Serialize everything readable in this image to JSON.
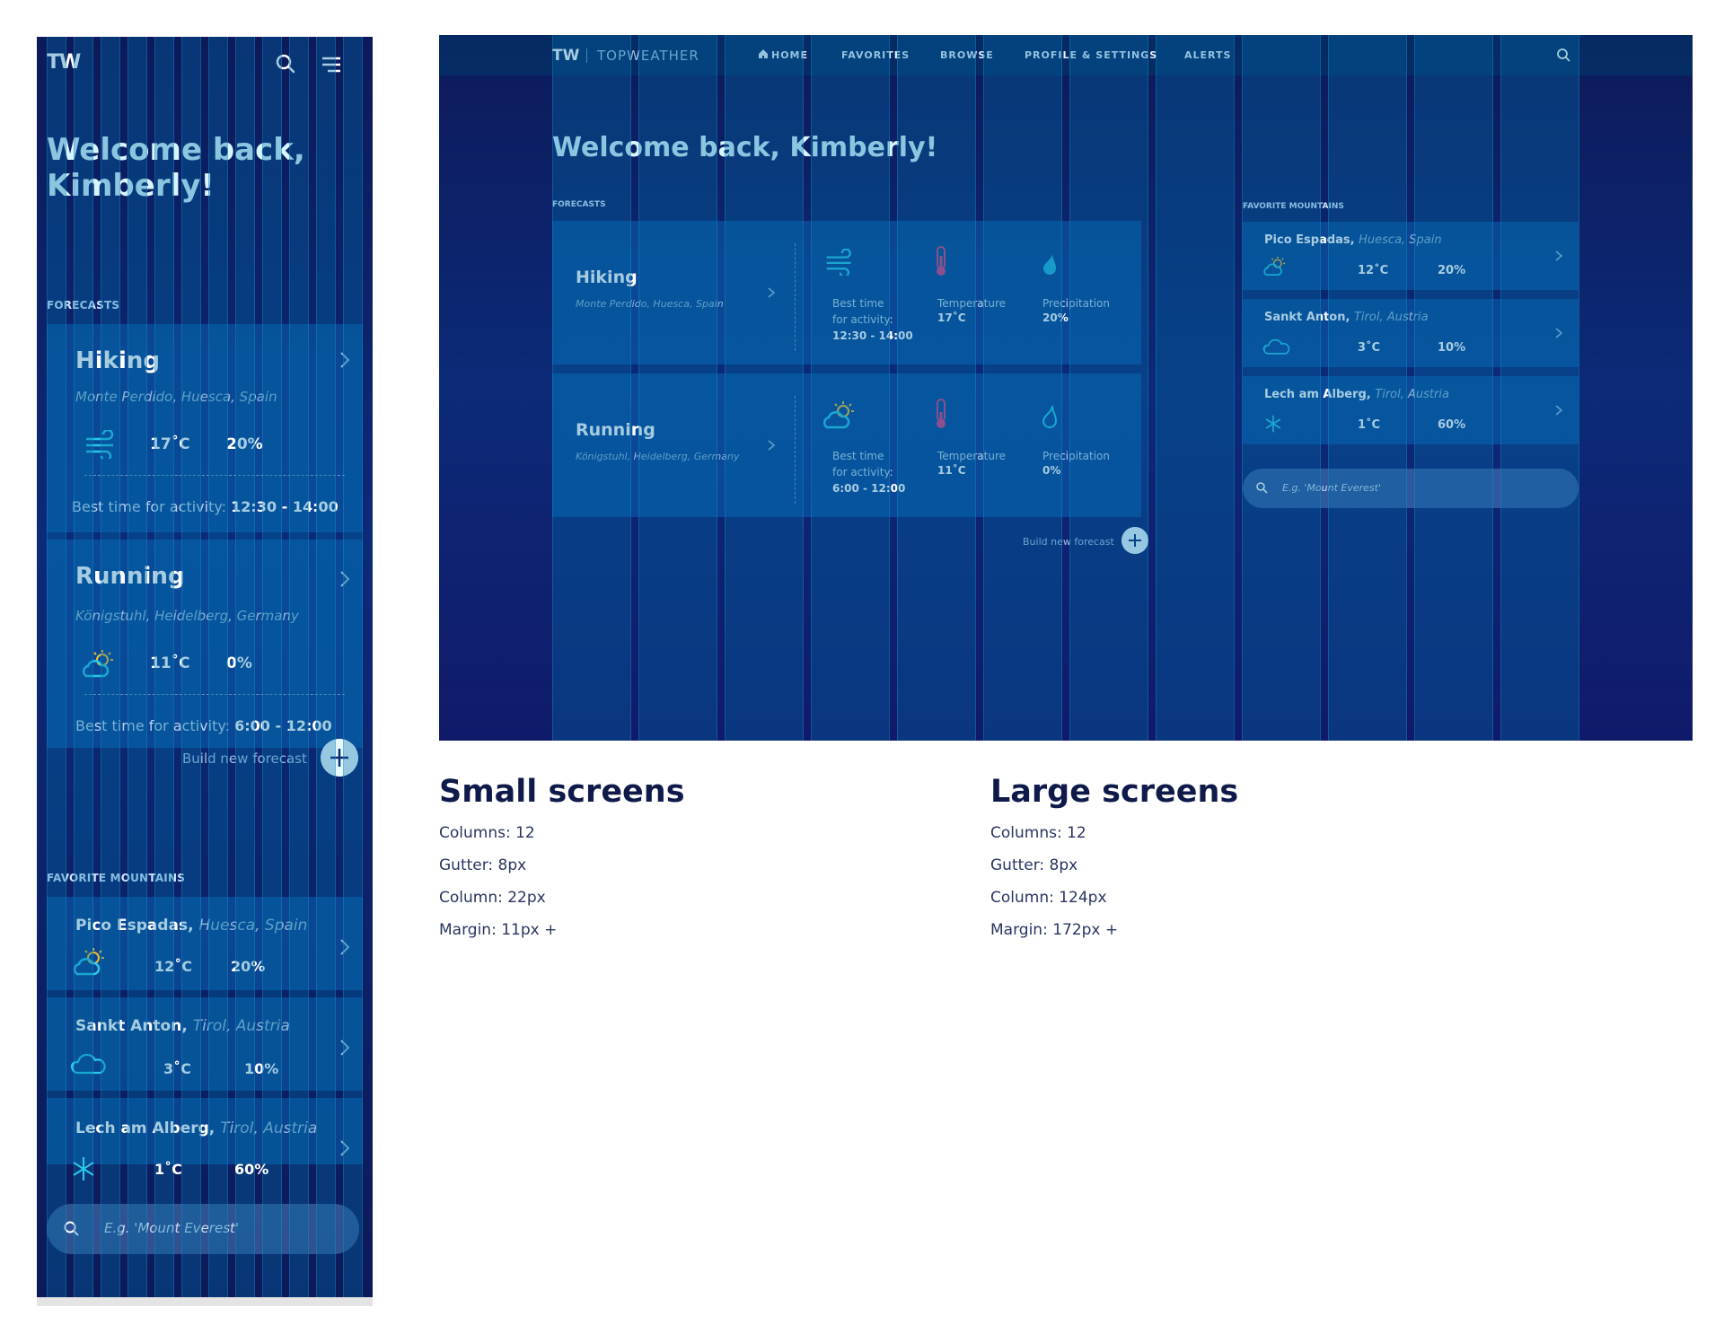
{
  "mobile": {
    "logo": "TW",
    "welcome": "Welcome back, Kimberly!",
    "forecasts_label": "FORECASTS",
    "forecasts": [
      {
        "title": "Hiking",
        "location": "Monte Perdido, Huesca, Spain",
        "temp": "17˚C",
        "precip": "20%",
        "best_label": "Best time for activity:",
        "best_time": "12:30 - 14:00",
        "icon": "wind-icon"
      },
      {
        "title": "Running",
        "location": "Königstuhl, Heidelberg, Germany",
        "temp": "11˚C",
        "precip": "0%",
        "best_label": "Best time for activity:",
        "best_time": "6:00 - 12:00",
        "icon": "partly-sunny-icon"
      }
    ],
    "build_label": "Build new forecast",
    "favorites_label": "FAVORITE MOUNTAINS",
    "mountains": [
      {
        "name": "Pico Espadas,",
        "region": "Huesca, Spain",
        "temp": "12˚C",
        "precip": "20%",
        "icon": "partly-sunny-icon"
      },
      {
        "name": "Sankt Anton,",
        "region": "Tirol, Austria",
        "temp": "3˚C",
        "precip": "10%",
        "icon": "cloud-icon"
      },
      {
        "name": "Lech am Alberg,",
        "region": "Tirol, Austria",
        "temp": "1˚C",
        "precip": "60%",
        "icon": "snowflake-icon"
      }
    ],
    "search_placeholder": "E.g. 'Mount Everest'"
  },
  "desktop": {
    "logo": "TW",
    "brand": "TOPWEATHER",
    "nav": [
      "HOME",
      "FAVORITES",
      "BROWSE",
      "PROFILE & SETTINGS",
      "ALERTS"
    ],
    "welcome": "Welcome back, Kimberly!",
    "forecasts_label": "FORECASTS",
    "forecasts": [
      {
        "title": "Hiking",
        "location": "Monte Perdido, Huesca, Spain",
        "best_label_1": "Best time",
        "best_label_2": "for activity:",
        "best_time": "12:30 - 14:00",
        "temp_label": "Temperature",
        "temp": "17˚C",
        "precip_label": "Precipitation",
        "precip": "20%",
        "icon": "wind-icon"
      },
      {
        "title": "Running",
        "location": "Königstuhl, Heidelberg, Germany",
        "best_label_1": "Best time",
        "best_label_2": "for activity:",
        "best_time": "6:00 - 12:00",
        "temp_label": "Temperature",
        "temp": "11˚C",
        "precip_label": "Precipitation",
        "precip": "0%",
        "icon": "partly-sunny-icon"
      }
    ],
    "build_label": "Build new forecast",
    "favorites_label": "FAVORITE MOUNTAINS",
    "mountains": [
      {
        "name": "Pico Espadas,",
        "region": "Huesca, Spain",
        "temp": "12˚C",
        "precip": "20%",
        "icon": "partly-sunny-icon"
      },
      {
        "name": "Sankt Anton,",
        "region": "Tirol, Austria",
        "temp": "3˚C",
        "precip": "10%",
        "icon": "cloud-icon"
      },
      {
        "name": "Lech am Alberg,",
        "region": "Tirol, Austria",
        "temp": "1˚C",
        "precip": "60%",
        "icon": "snowflake-icon"
      }
    ],
    "search_placeholder": "E.g. 'Mount Everest'"
  },
  "captions": {
    "small": {
      "heading": "Small screens",
      "columns": "Columns: 12",
      "gutter": "Gutter: 8px",
      "column": "Column: 22px",
      "margin": "Margin: 11px  +"
    },
    "large": {
      "heading": "Large screens",
      "columns": "Columns: 12",
      "gutter": "Gutter: 8px",
      "column": "Column: 124px",
      "margin": "Margin: 172px +"
    }
  },
  "colors": {
    "accent": "#29c7e8",
    "brand_dark": "#0d1a5a",
    "text_dark": "#0f1a4a",
    "thermo": "#d6417f",
    "sun": "#f2c230"
  }
}
